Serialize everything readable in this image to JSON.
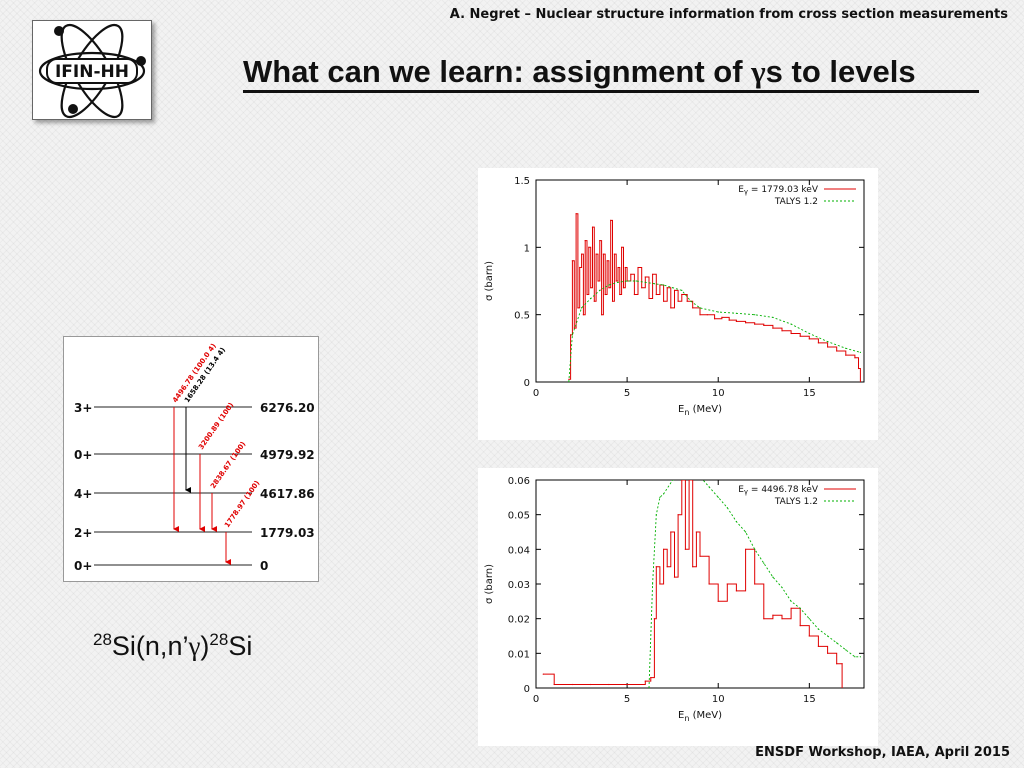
{
  "header": {
    "note": "A. Negret – Nuclear structure information from cross section measurements",
    "logo_text": "IFIN-HH"
  },
  "title": {
    "prefix": "What can we learn: assignment of ",
    "gamma": "γ",
    "suffix": "s to levels"
  },
  "level_scheme": {
    "levels": [
      {
        "spin": "3+",
        "energy": "6276.20"
      },
      {
        "spin": "0+",
        "energy": "4979.92"
      },
      {
        "spin": "4+",
        "energy": "4617.86"
      },
      {
        "spin": "2+",
        "energy": "1779.03"
      },
      {
        "spin": "0+",
        "energy": "0"
      }
    ],
    "transitions": [
      {
        "label": "4496.78 (100.0  4)",
        "color": "#e00000",
        "from": "6276.20",
        "to": "1779.03"
      },
      {
        "label": "1658.28 (13.4  4)",
        "color": "#000000",
        "from": "6276.20",
        "to": "4617.86"
      },
      {
        "label": "3200.89 (100)",
        "color": "#e00000",
        "from": "4979.92",
        "to": "1779.03"
      },
      {
        "label": "2838.67 (100)",
        "color": "#e00000",
        "from": "4617.86",
        "to": "1779.03"
      },
      {
        "label": "1778.97 (100)",
        "color": "#e00000",
        "from": "1779.03",
        "to": "0"
      }
    ]
  },
  "reaction": {
    "a1": "28",
    "mid": "Si(n,n’",
    "gamma": "γ",
    "close": ")",
    "a2": "28",
    "end": "Si"
  },
  "footer": {
    "note": "ENSDF Workshop, IAEA, April 2015"
  },
  "chart_data": [
    {
      "type": "line",
      "xlabel_main": "E",
      "xlabel_sub": "n",
      "xlabel_unit": " (MeV)",
      "ylabel": "σ (barn)",
      "xlim": [
        0,
        18
      ],
      "ylim": [
        0,
        1.5
      ],
      "xticks": [
        0,
        5,
        10,
        15
      ],
      "xtick_labels": [
        "0",
        "5",
        "10",
        "15"
      ],
      "yticks": [
        0,
        0.5,
        1,
        1.5
      ],
      "ytick_labels": [
        "0",
        "0.5",
        "1",
        "1.5"
      ],
      "legend_position": "top-right",
      "series": [
        {
          "name": "E",
          "name_sub": "γ",
          "name_rest": " = 1779.03 keV",
          "color": "#e00000",
          "style": "solid",
          "x": [
            1.8,
            1.9,
            2.0,
            2.1,
            2.2,
            2.3,
            2.4,
            2.5,
            2.6,
            2.7,
            2.8,
            2.9,
            3.0,
            3.1,
            3.2,
            3.3,
            3.4,
            3.5,
            3.6,
            3.7,
            3.8,
            3.9,
            4.0,
            4.1,
            4.2,
            4.3,
            4.4,
            4.5,
            4.6,
            4.7,
            4.8,
            4.9,
            5.0,
            5.2,
            5.4,
            5.6,
            5.8,
            6.0,
            6.2,
            6.4,
            6.6,
            6.8,
            7.0,
            7.2,
            7.4,
            7.6,
            7.8,
            8.0,
            8.3,
            8.6,
            9.0,
            9.4,
            9.8,
            10.2,
            10.6,
            11.0,
            11.5,
            12.0,
            12.5,
            13.0,
            13.5,
            14.0,
            14.5,
            15.0,
            15.5,
            16.0,
            16.5,
            17.0,
            17.5,
            17.7,
            17.8
          ],
          "y": [
            0.02,
            0.35,
            0.9,
            0.4,
            1.25,
            0.55,
            0.85,
            0.95,
            0.5,
            1.05,
            0.65,
            1.0,
            0.7,
            1.15,
            0.6,
            0.95,
            0.75,
            1.05,
            0.5,
            0.95,
            0.65,
            0.9,
            0.7,
            1.2,
            0.6,
            0.95,
            0.75,
            0.85,
            0.65,
            1.0,
            0.7,
            0.85,
            0.75,
            0.8,
            0.65,
            0.85,
            0.7,
            0.78,
            0.62,
            0.8,
            0.65,
            0.72,
            0.6,
            0.7,
            0.55,
            0.68,
            0.6,
            0.65,
            0.6,
            0.55,
            0.5,
            0.5,
            0.47,
            0.48,
            0.46,
            0.45,
            0.44,
            0.43,
            0.42,
            0.4,
            0.38,
            0.36,
            0.34,
            0.32,
            0.29,
            0.26,
            0.23,
            0.2,
            0.18,
            0.1,
            0.0
          ]
        },
        {
          "name": "TALYS 1.2",
          "color": "#00b000",
          "style": "dashed",
          "x": [
            1.8,
            2.0,
            2.5,
            3.0,
            3.5,
            4.0,
            4.5,
            5.0,
            5.5,
            6.0,
            6.5,
            7.0,
            7.5,
            8.0,
            8.5,
            9.0,
            10.0,
            11.0,
            12.0,
            13.0,
            14.0,
            15.0,
            16.0,
            17.0,
            17.8
          ],
          "y": [
            0.0,
            0.35,
            0.55,
            0.62,
            0.68,
            0.72,
            0.74,
            0.75,
            0.75,
            0.74,
            0.73,
            0.72,
            0.7,
            0.68,
            0.6,
            0.55,
            0.52,
            0.51,
            0.5,
            0.48,
            0.43,
            0.36,
            0.3,
            0.25,
            0.22
          ]
        }
      ]
    },
    {
      "type": "line",
      "xlabel_main": "E",
      "xlabel_sub": "n",
      "xlabel_unit": " (MeV)",
      "ylabel": "σ (barn)",
      "xlim": [
        0,
        18
      ],
      "ylim": [
        0,
        0.06
      ],
      "xticks": [
        0,
        5,
        10,
        15
      ],
      "xtick_labels": [
        "0",
        "5",
        "10",
        "15"
      ],
      "yticks": [
        0,
        0.01,
        0.02,
        0.03,
        0.04,
        0.05,
        0.06
      ],
      "ytick_labels": [
        "0",
        "0.01",
        "0.02",
        "0.03",
        "0.04",
        "0.05",
        "0.06"
      ],
      "legend_position": "top-right",
      "series": [
        {
          "name": "E",
          "name_sub": "γ",
          "name_rest": " = 4496.78 keV",
          "color": "#e00000",
          "style": "solid",
          "x": [
            0.4,
            1.0,
            2.0,
            3.0,
            4.0,
            5.0,
            6.0,
            6.3,
            6.5,
            6.6,
            6.8,
            7.0,
            7.2,
            7.4,
            7.6,
            7.8,
            8.0,
            8.2,
            8.4,
            8.6,
            8.8,
            9.0,
            9.5,
            10.0,
            10.5,
            11.0,
            11.5,
            12.0,
            12.5,
            13.0,
            13.5,
            14.0,
            14.5,
            15.0,
            15.5,
            16.0,
            16.5,
            16.8,
            16.8
          ],
          "y": [
            0.004,
            0.001,
            0.001,
            0.001,
            0.001,
            0.001,
            0.002,
            0.003,
            0.02,
            0.035,
            0.03,
            0.04,
            0.035,
            0.045,
            0.032,
            0.05,
            0.06,
            0.04,
            0.06,
            0.035,
            0.045,
            0.038,
            0.03,
            0.025,
            0.03,
            0.028,
            0.04,
            0.03,
            0.02,
            0.021,
            0.02,
            0.023,
            0.018,
            0.015,
            0.012,
            0.01,
            0.007,
            0.007,
            0.0
          ]
        },
        {
          "name": "TALYS 1.2",
          "color": "#00b000",
          "style": "dashed",
          "x": [
            6.2,
            6.4,
            6.6,
            6.8,
            7.0,
            7.5,
            8.0,
            8.5,
            9.0,
            9.5,
            10.0,
            10.5,
            11.0,
            11.5,
            12.0,
            12.5,
            13.0,
            13.5,
            14.0,
            14.5,
            15.0,
            15.5,
            16.0,
            16.5,
            17.0,
            17.5,
            17.8
          ],
          "y": [
            0.0,
            0.03,
            0.05,
            0.055,
            0.056,
            0.06,
            0.064,
            0.063,
            0.061,
            0.058,
            0.055,
            0.052,
            0.048,
            0.045,
            0.04,
            0.036,
            0.032,
            0.029,
            0.025,
            0.023,
            0.02,
            0.017,
            0.015,
            0.013,
            0.011,
            0.009,
            0.009
          ]
        }
      ]
    }
  ]
}
